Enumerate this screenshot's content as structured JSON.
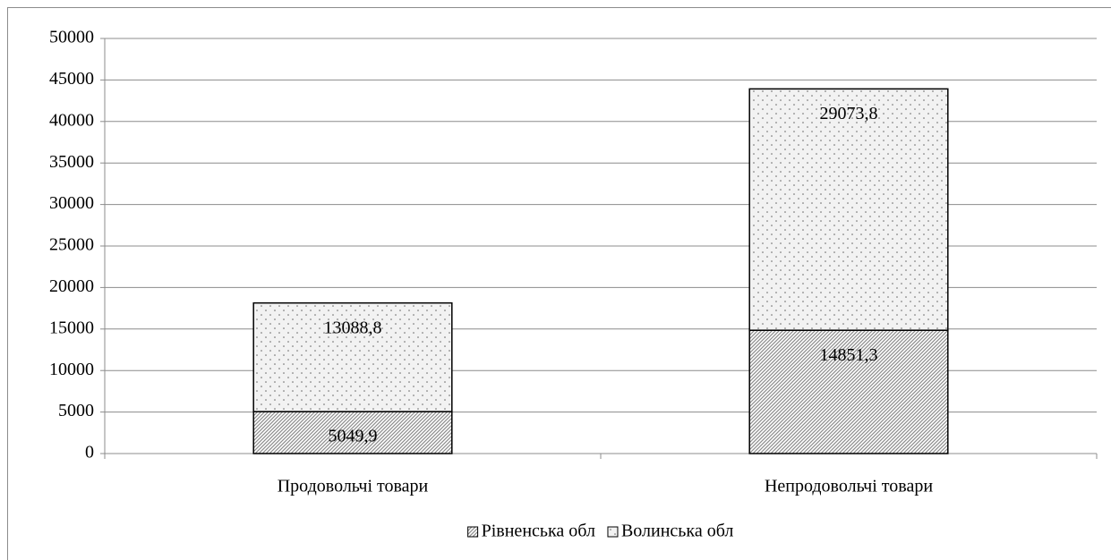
{
  "chart_data": {
    "type": "stacked_bar",
    "categories": [
      "Продовольчі товари",
      "Непродовольчі товари"
    ],
    "series": [
      {
        "name": "Рівненська обл",
        "color": "#8c8c8c",
        "pattern": "hatch",
        "values": [
          5049.9,
          14851.3
        ],
        "value_labels": [
          "5049,9",
          "14851,3"
        ]
      },
      {
        "name": "Волинська обл",
        "color": "#f2f2f2",
        "pattern": "dots",
        "values": [
          13088.8,
          29073.8
        ],
        "value_labels": [
          "13088,8",
          "29073,8"
        ]
      }
    ],
    "ylim": [
      0,
      50000
    ],
    "yticks": [
      0,
      5000,
      10000,
      15000,
      20000,
      25000,
      30000,
      35000,
      40000,
      45000,
      50000
    ],
    "grid": true,
    "legend": "bottom"
  }
}
